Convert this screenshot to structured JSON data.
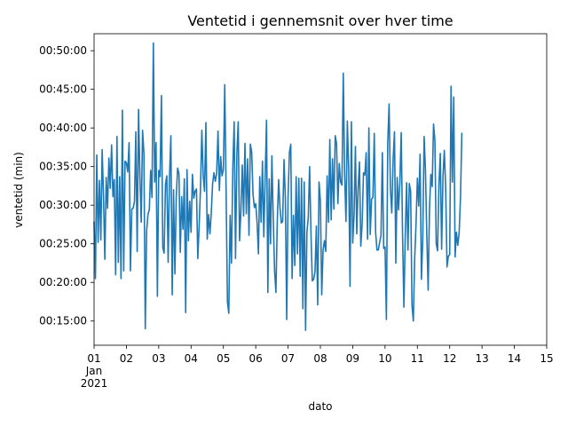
{
  "chart_data": {
    "type": "line",
    "title": "Ventetid i gennemsnit over hver time",
    "xlabel": "dato",
    "ylabel": "ventetid (min)",
    "x_unit": "day of January 2021 (hourly observations)",
    "x_range": [
      1,
      15
    ],
    "y_range": [
      "00:11:52",
      "00:52:12"
    ],
    "x_ticks": [
      {
        "x": 1,
        "lines": [
          "01",
          "Jan",
          "2021"
        ]
      },
      {
        "x": 2,
        "lines": [
          "02"
        ]
      },
      {
        "x": 3,
        "lines": [
          "03"
        ]
      },
      {
        "x": 4,
        "lines": [
          "04"
        ]
      },
      {
        "x": 5,
        "lines": [
          "05"
        ]
      },
      {
        "x": 6,
        "lines": [
          "06"
        ]
      },
      {
        "x": 7,
        "lines": [
          "07"
        ]
      },
      {
        "x": 8,
        "lines": [
          "08"
        ]
      },
      {
        "x": 9,
        "lines": [
          "09"
        ]
      },
      {
        "x": 10,
        "lines": [
          "10"
        ]
      },
      {
        "x": 11,
        "lines": [
          "11"
        ]
      },
      {
        "x": 12,
        "lines": [
          "12"
        ]
      },
      {
        "x": 13,
        "lines": [
          "13"
        ]
      },
      {
        "x": 14,
        "lines": [
          "14"
        ]
      },
      {
        "x": 15,
        "lines": [
          "15"
        ]
      }
    ],
    "y_ticks": [
      "00:15:00",
      "00:20:00",
      "00:25:00",
      "00:30:00",
      "00:35:00",
      "00:40:00",
      "00:45:00",
      "00:50:00"
    ],
    "grid": false,
    "line_color": "#1f77b4",
    "series": [
      {
        "start": "2021-01-01 00:00",
        "interval": "1 hour",
        "values_minutes": [
          27.8,
          20.5,
          36.5,
          25.2,
          33.2,
          25.5,
          37.2,
          31.1,
          23.0,
          33.6,
          29.6,
          36.1,
          32.2,
          37.8,
          31.1,
          33.3,
          21.0,
          38.9,
          22.6,
          33.7,
          20.5,
          42.3,
          21.5,
          35.7,
          35.5,
          34.3,
          38.1,
          21.5,
          29.5,
          29.6,
          30.5,
          39.5,
          24.0,
          42.4,
          33.9,
          27.8,
          39.7,
          36.7,
          14.0,
          26.6,
          28.8,
          29.4,
          34.5,
          31.0,
          51.0,
          33.0,
          38.1,
          18.2,
          34.5,
          33.7,
          44.2,
          24.5,
          23.8,
          32.7,
          33.8,
          22.6,
          33.7,
          39.0,
          18.4,
          32.0,
          21.1,
          31.0,
          34.8,
          34.1,
          23.9,
          31.1,
          26.9,
          33.4,
          16.1,
          34.6,
          25.4,
          30.5,
          26.5,
          34.0,
          30.9,
          31.8,
          32.1,
          23.1,
          27.3,
          32.2,
          39.7,
          33.8,
          31.8,
          40.7,
          25.6,
          28.8,
          26.3,
          29.0,
          32.8,
          34.2,
          33.1,
          34.1,
          39.6,
          31.9,
          36.3,
          33.8,
          34.6,
          45.6,
          32.0,
          17.5,
          16.0,
          28.7,
          22.5,
          34.9,
          40.8,
          23.1,
          36.6,
          40.8,
          25.4,
          29.2,
          35.2,
          28.6,
          38.0,
          28.9,
          36.0,
          26.1,
          37.9,
          36.9,
          31.4,
          29.7,
          30.2,
          27.8,
          23.7,
          33.7,
          27.8,
          35.7,
          25.9,
          33.5,
          41.0,
          18.7,
          33.4,
          25.0,
          36.4,
          28.2,
          21.5,
          18.7,
          27.9,
          33.3,
          29.7,
          27.7,
          27.9,
          35.9,
          30.9,
          15.2,
          31.0,
          36.8,
          37.9,
          20.5,
          28.7,
          22.2,
          33.7,
          23.7,
          33.5,
          20.8,
          33.5,
          16.6,
          33.0,
          13.8,
          26.5,
          28.4,
          35.0,
          26.4,
          20.2,
          20.4,
          21.4,
          27.3,
          17.1,
          33.0,
          30.5,
          18.4,
          24.2,
          25.4,
          24.0,
          33.8,
          27.8,
          38.5,
          28.1,
          36.0,
          29.5,
          39.0,
          38.0,
          30.2,
          35.4,
          33.0,
          32.6,
          47.1,
          34.0,
          27.9,
          40.9,
          34.7,
          19.5,
          40.8,
          25.1,
          28.7,
          37.6,
          26.3,
          32.2,
          35.6,
          24.7,
          27.6,
          34.2,
          33.9,
          36.8,
          25.6,
          40.0,
          26.2,
          30.8,
          31.0,
          39.3,
          26.5,
          24.2,
          24.2,
          25.2,
          26.1,
          36.8,
          24.4,
          24.6,
          15.2,
          38.0,
          43.1,
          32.1,
          29.0,
          35.9,
          39.5,
          22.5,
          33.6,
          29.4,
          32.9,
          39.4,
          26.2,
          16.8,
          26.1,
          32.9,
          24.2,
          32.8,
          31.8,
          17.1,
          15.0,
          23.1,
          27.6,
          33.5,
          29.9,
          36.6,
          20.4,
          25.6,
          38.9,
          34.5,
          26.1,
          19.0,
          29.6,
          34.0,
          32.4,
          40.5,
          38.4,
          25.0,
          24.1,
          32.6,
          36.7,
          24.3,
          33.7,
          37.1,
          32.3,
          22.0,
          23.4,
          23.6,
          45.4,
          33.0,
          44.0,
          23.3,
          26.5,
          24.8,
          26.4,
          31.0,
          39.3
        ]
      }
    ]
  }
}
